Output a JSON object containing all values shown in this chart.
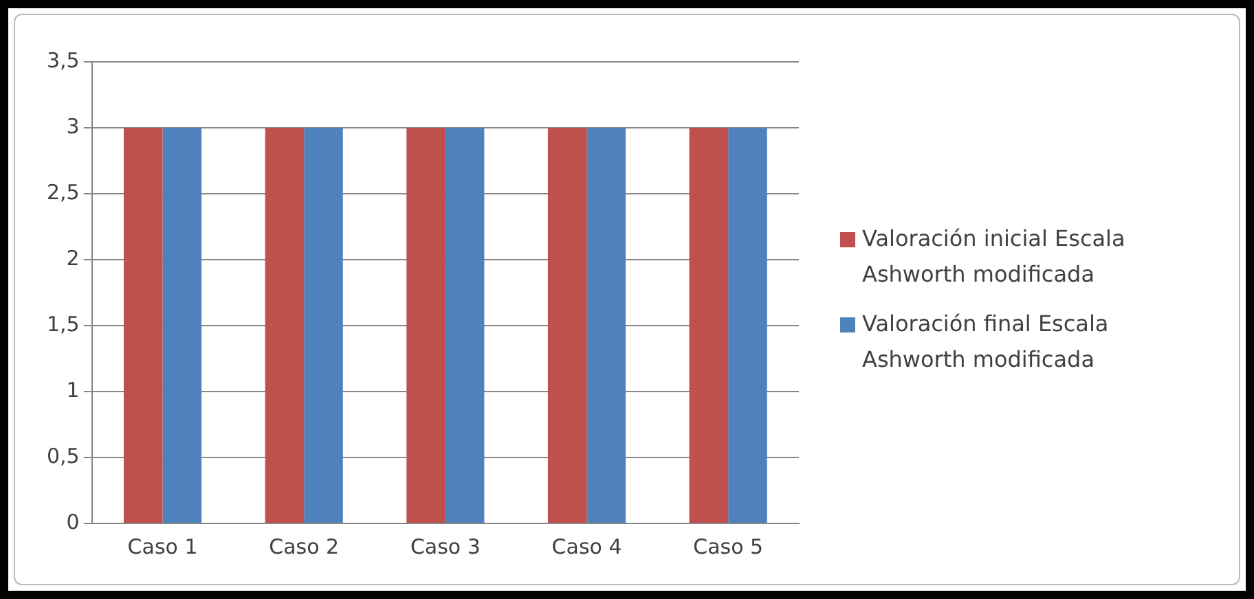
{
  "chart_data": {
    "type": "bar",
    "categories": [
      "Caso 1",
      "Caso 2",
      "Caso 3",
      "Caso 4",
      "Caso 5"
    ],
    "series": [
      {
        "name": "Valoración inicial Escala Ashworth modificada",
        "color": "#c0504d",
        "values": [
          3,
          3,
          3,
          3,
          3
        ]
      },
      {
        "name": "Valoración final Escala Ashworth modificada",
        "color": "#4f81bd",
        "values": [
          3,
          3,
          3,
          3,
          3
        ]
      }
    ],
    "ylim": [
      0,
      3.5
    ],
    "yticks": [
      0,
      {
        "value": 0.5,
        "label": "0,5"
      },
      1,
      {
        "value": 1.5,
        "label": "1,5"
      },
      2,
      {
        "value": 2.5,
        "label": "2,5"
      },
      3,
      {
        "value": 3.5,
        "label": "3,5"
      }
    ],
    "grid": "y",
    "legend": "right"
  }
}
